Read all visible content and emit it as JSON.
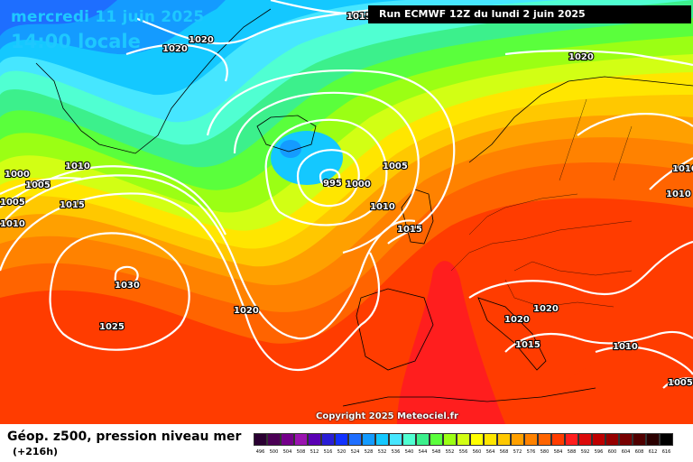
{
  "header": {
    "date": "mercredi 11 juin 2025",
    "time": "14:00 locale",
    "run": "Run ECMWF 12Z du lundi 2 juin 2025"
  },
  "footer": {
    "title": "Géop. z500, pression niveau mer",
    "lead": "(+216h)",
    "copyright": "Copyright 2025 Meteociel.fr"
  },
  "scale": {
    "labels": [
      "496",
      "500",
      "504",
      "508",
      "512",
      "516",
      "520",
      "524",
      "528",
      "532",
      "536",
      "540",
      "544",
      "548",
      "552",
      "556",
      "560",
      "564",
      "568",
      "572",
      "576",
      "580",
      "584",
      "588",
      "592",
      "596",
      "600",
      "604",
      "608",
      "612",
      "616"
    ],
    "colors": [
      "#2a0032",
      "#4b0055",
      "#74008a",
      "#9a14b0",
      "#5a00b4",
      "#2a1ed6",
      "#1232ff",
      "#1e6eff",
      "#149bff",
      "#14c8ff",
      "#46e6ff",
      "#50ffd2",
      "#3cf08c",
      "#5aff3c",
      "#9bff14",
      "#d2ff14",
      "#ffff00",
      "#ffe600",
      "#ffc800",
      "#ffa000",
      "#ff8200",
      "#ff6400",
      "#ff3c00",
      "#ff1e1e",
      "#dc0a0a",
      "#be0000",
      "#960000",
      "#780000",
      "#500000",
      "#2a0000",
      "#000000"
    ]
  },
  "isobars": [
    "1015",
    "1020",
    "1020",
    "1020",
    "1000",
    "1005",
    "1005",
    "1010",
    "1015",
    "1010",
    "1030",
    "1025",
    "1020",
    "995",
    "1000",
    "1005",
    "1010",
    "1015",
    "1020",
    "1020",
    "1015",
    "1010",
    "1010",
    "1010",
    "1005"
  ]
}
